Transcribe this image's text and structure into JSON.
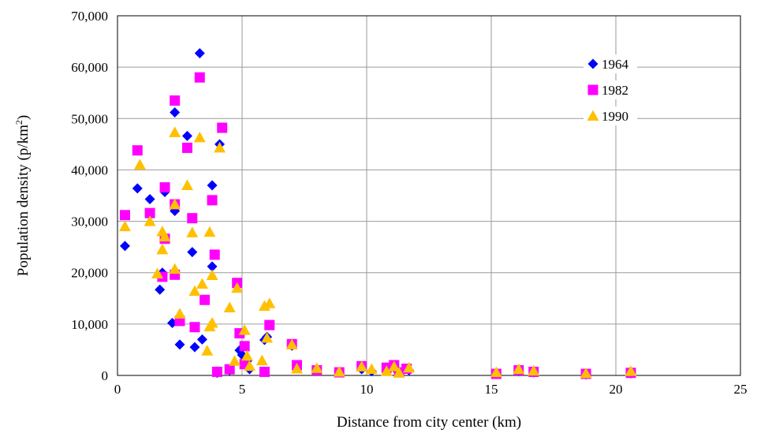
{
  "chart_data": {
    "type": "scatter",
    "xlabel": "Distance from city center (km)",
    "ylabel_main": "Population density (p/km",
    "ylabel_sup": "2",
    "ylabel_tail": ")",
    "xlim": [
      0,
      25
    ],
    "ylim": [
      0,
      70000
    ],
    "x_ticks": [
      0,
      5,
      10,
      15,
      20,
      25
    ],
    "x_tick_labels": [
      "0",
      "5",
      "10",
      "15",
      "20",
      "25"
    ],
    "y_ticks": [
      0,
      10000,
      20000,
      30000,
      40000,
      50000,
      60000,
      70000
    ],
    "y_tick_labels": [
      "0",
      "10,000",
      "20,000",
      "30,000",
      "40,000",
      "50,000",
      "60,000",
      "70,000"
    ],
    "grid": true,
    "legend_position": "top-right",
    "series": [
      {
        "name": "1964",
        "marker": "diamond",
        "color": "#0000ff",
        "points": [
          [
            0.3,
            25200
          ],
          [
            0.8,
            36400
          ],
          [
            1.3,
            34300
          ],
          [
            1.7,
            16700
          ],
          [
            1.8,
            20000
          ],
          [
            1.9,
            35700
          ],
          [
            2.2,
            10200
          ],
          [
            2.3,
            32000
          ],
          [
            2.3,
            51200
          ],
          [
            2.5,
            6000
          ],
          [
            2.8,
            46600
          ],
          [
            3.0,
            24000
          ],
          [
            3.1,
            5500
          ],
          [
            3.3,
            62700
          ],
          [
            3.4,
            7000
          ],
          [
            3.8,
            37000
          ],
          [
            3.8,
            21200
          ],
          [
            4.0,
            500
          ],
          [
            4.1,
            45000
          ],
          [
            4.5,
            1000
          ],
          [
            4.9,
            4900
          ],
          [
            5.0,
            4000
          ],
          [
            5.2,
            2800
          ],
          [
            5.3,
            1200
          ],
          [
            5.9,
            6900
          ],
          [
            6.0,
            7500
          ],
          [
            7.0,
            5800
          ],
          [
            7.2,
            1800
          ],
          [
            8.0,
            1000
          ],
          [
            8.9,
            700
          ],
          [
            9.8,
            1200
          ],
          [
            10.2,
            800
          ],
          [
            10.8,
            1000
          ],
          [
            11.1,
            1500
          ],
          [
            11.3,
            700
          ],
          [
            11.7,
            1000
          ],
          [
            15.2,
            300
          ],
          [
            16.1,
            800
          ],
          [
            16.7,
            600
          ],
          [
            18.8,
            200
          ],
          [
            20.6,
            400
          ]
        ]
      },
      {
        "name": "1982",
        "marker": "square",
        "color": "#ff00ff",
        "points": [
          [
            0.3,
            31200
          ],
          [
            0.8,
            43800
          ],
          [
            1.3,
            31600
          ],
          [
            1.8,
            19200
          ],
          [
            1.9,
            26600
          ],
          [
            1.9,
            36600
          ],
          [
            2.3,
            19600
          ],
          [
            2.3,
            33300
          ],
          [
            2.3,
            53500
          ],
          [
            2.5,
            10600
          ],
          [
            2.8,
            44300
          ],
          [
            3.0,
            30600
          ],
          [
            3.1,
            9400
          ],
          [
            3.3,
            58000
          ],
          [
            3.5,
            14700
          ],
          [
            3.8,
            34100
          ],
          [
            3.9,
            23500
          ],
          [
            4.0,
            700
          ],
          [
            4.2,
            48200
          ],
          [
            4.5,
            1200
          ],
          [
            4.8,
            18000
          ],
          [
            4.9,
            8200
          ],
          [
            5.1,
            5700
          ],
          [
            5.1,
            2200
          ],
          [
            5.9,
            700
          ],
          [
            6.1,
            9800
          ],
          [
            7.0,
            6100
          ],
          [
            7.2,
            2000
          ],
          [
            8.0,
            1000
          ],
          [
            8.9,
            600
          ],
          [
            9.8,
            1800
          ],
          [
            10.8,
            1500
          ],
          [
            11.1,
            2000
          ],
          [
            11.3,
            600
          ],
          [
            11.6,
            1300
          ],
          [
            15.2,
            300
          ],
          [
            16.1,
            1000
          ],
          [
            16.7,
            700
          ],
          [
            18.8,
            300
          ],
          [
            20.6,
            500
          ]
        ]
      },
      {
        "name": "1990",
        "marker": "triangle",
        "color": "#ffc000",
        "points": [
          [
            0.3,
            29000
          ],
          [
            0.9,
            41000
          ],
          [
            1.3,
            30000
          ],
          [
            1.6,
            19800
          ],
          [
            1.8,
            28000
          ],
          [
            1.8,
            24500
          ],
          [
            1.9,
            27000
          ],
          [
            2.3,
            20700
          ],
          [
            2.3,
            33300
          ],
          [
            2.3,
            47300
          ],
          [
            2.5,
            12000
          ],
          [
            2.8,
            37000
          ],
          [
            3.0,
            27800
          ],
          [
            3.1,
            16400
          ],
          [
            3.3,
            46300
          ],
          [
            3.4,
            17800
          ],
          [
            3.6,
            4800
          ],
          [
            3.7,
            9500
          ],
          [
            3.7,
            27900
          ],
          [
            3.8,
            10200
          ],
          [
            3.8,
            19500
          ],
          [
            4.1,
            44300
          ],
          [
            4.5,
            13200
          ],
          [
            4.7,
            2800
          ],
          [
            4.8,
            17000
          ],
          [
            5.1,
            8800
          ],
          [
            5.2,
            3800
          ],
          [
            5.3,
            1800
          ],
          [
            5.8,
            2900
          ],
          [
            5.9,
            13500
          ],
          [
            6.0,
            7300
          ],
          [
            6.1,
            14000
          ],
          [
            7.0,
            6000
          ],
          [
            7.2,
            1300
          ],
          [
            8.0,
            1400
          ],
          [
            8.9,
            700
          ],
          [
            9.8,
            1700
          ],
          [
            10.2,
            1200
          ],
          [
            10.8,
            800
          ],
          [
            11.1,
            1700
          ],
          [
            11.3,
            500
          ],
          [
            11.7,
            1500
          ],
          [
            15.2,
            600
          ],
          [
            16.1,
            1200
          ],
          [
            16.7,
            900
          ],
          [
            18.8,
            400
          ],
          [
            20.6,
            800
          ]
        ]
      }
    ]
  }
}
